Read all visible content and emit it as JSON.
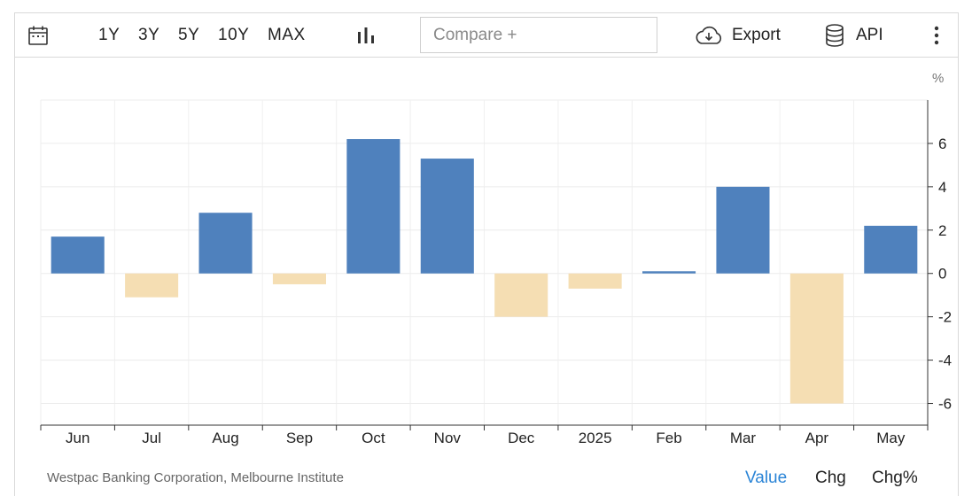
{
  "toolbar": {
    "calendar_icon": "calendar-icon",
    "ranges": [
      "1Y",
      "3Y",
      "5Y",
      "10Y",
      "MAX"
    ],
    "chart_type_icon": "bar-chart-icon",
    "compare_placeholder": "Compare +",
    "export_label": "Export",
    "export_icon": "cloud-download-icon",
    "api_label": "API",
    "api_icon": "database-icon",
    "more_icon": "vertical-dots-icon"
  },
  "chart_data": {
    "type": "bar",
    "unit_label": "%",
    "categories": [
      "Jun",
      "Jul",
      "Aug",
      "Sep",
      "Oct",
      "Nov",
      "Dec",
      "2025",
      "Feb",
      "Mar",
      "Apr",
      "May"
    ],
    "values": [
      1.7,
      -1.1,
      2.8,
      -0.5,
      6.2,
      5.3,
      -2.0,
      -0.7,
      0.1,
      4.0,
      -6.0,
      2.2
    ],
    "ylim": [
      -7,
      8
    ],
    "yticks": [
      6,
      4,
      2,
      0,
      -2,
      -4,
      -6
    ],
    "positive_color": "#4f81bd",
    "negative_color": "#f5deb3",
    "grid": true
  },
  "footer": {
    "source": "Westpac Banking Corporation, Melbourne Institute",
    "tabs": [
      "Value",
      "Chg",
      "Chg%"
    ],
    "active_tab": "Value",
    "active_color": "#2a84d6"
  }
}
